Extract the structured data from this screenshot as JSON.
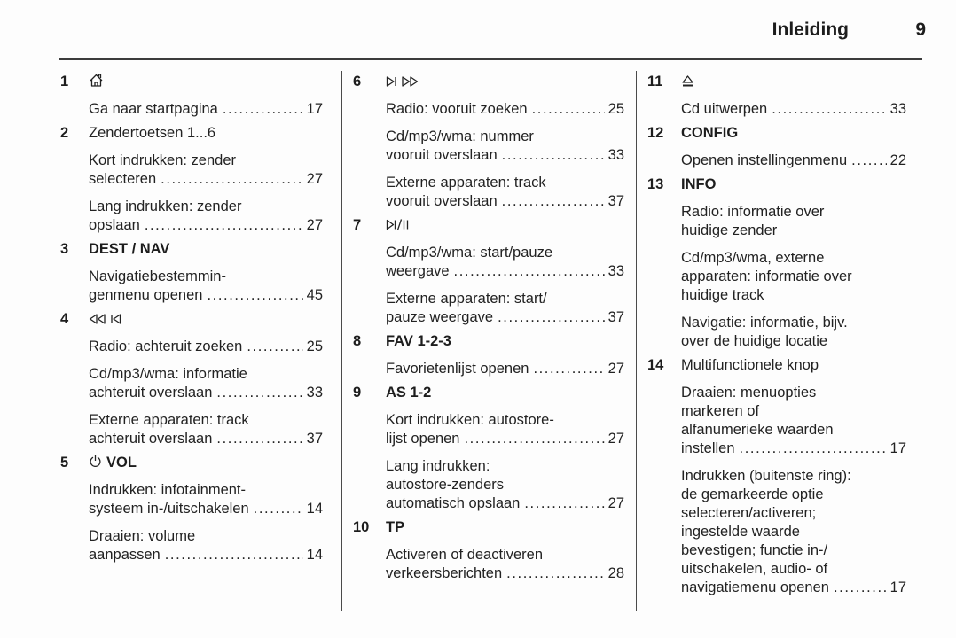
{
  "header": {
    "title": "Inleiding",
    "page_number": "9"
  },
  "colors": {
    "text": "#222222",
    "rule": "#3c3c3c",
    "background": "#fdfdfd"
  },
  "columns": [
    {
      "items": [
        {
          "number": "1",
          "label": {
            "icons": [
              "home-icon"
            ],
            "text": "",
            "bold": false
          },
          "entries": [
            {
              "lines": [
                "Ga naar startpagina"
              ],
              "page": "17"
            }
          ]
        },
        {
          "number": "2",
          "label": {
            "icons": [],
            "text": "Zendertoetsen 1...6",
            "bold": false
          },
          "entries": [
            {
              "lines": [
                "Kort indrukken: zender",
                "selecteren"
              ],
              "page": "27"
            },
            {
              "lines": [
                "Lang indrukken: zender",
                "opslaan"
              ],
              "page": "27"
            }
          ]
        },
        {
          "number": "3",
          "label": {
            "icons": [],
            "text": "DEST / NAV",
            "bold": true
          },
          "entries": [
            {
              "lines": [
                "Navigatiebestemmin-",
                "genmenu openen"
              ],
              "page": "45"
            }
          ]
        },
        {
          "number": "4",
          "label": {
            "icons": [
              "seek-back-icon",
              "skip-back-icon"
            ],
            "text": "",
            "bold": false
          },
          "entries": [
            {
              "lines": [
                "Radio: achteruit zoeken"
              ],
              "page": "25"
            },
            {
              "lines": [
                "Cd/mp3/wma: informatie",
                "achteruit overslaan"
              ],
              "page": "33"
            },
            {
              "lines": [
                "Externe apparaten: track",
                "achteruit overslaan"
              ],
              "page": "37"
            }
          ]
        },
        {
          "number": "5",
          "label": {
            "icons": [
              "power-icon"
            ],
            "text": "VOL",
            "bold": true
          },
          "entries": [
            {
              "lines": [
                "Indrukken: infotainment-",
                "systeem in-/uitschakelen"
              ],
              "page": "14"
            },
            {
              "lines": [
                "Draaien: volume",
                "aanpassen"
              ],
              "page": "14"
            }
          ]
        }
      ]
    },
    {
      "items": [
        {
          "number": "6",
          "label": {
            "icons": [
              "skip-forward-icon",
              "seek-forward-icon"
            ],
            "text": "",
            "bold": false
          },
          "entries": [
            {
              "lines": [
                "Radio: vooruit zoeken"
              ],
              "page": "25"
            },
            {
              "lines": [
                "Cd/mp3/wma: nummer",
                "vooruit overslaan"
              ],
              "page": "33"
            },
            {
              "lines": [
                "Externe apparaten: track",
                "vooruit overslaan"
              ],
              "page": "37"
            }
          ]
        },
        {
          "number": "7",
          "label": {
            "icons": [
              "play-pause-icon"
            ],
            "text": "",
            "bold": false
          },
          "entries": [
            {
              "lines": [
                "Cd/mp3/wma: start/pauze",
                "weergave"
              ],
              "page": "33"
            },
            {
              "lines": [
                "Externe apparaten: start/",
                "pauze weergave"
              ],
              "page": "37"
            }
          ]
        },
        {
          "number": "8",
          "label": {
            "icons": [],
            "text": "FAV 1-2-3",
            "bold": true
          },
          "entries": [
            {
              "lines": [
                "Favorietenlijst openen"
              ],
              "page": "27"
            }
          ]
        },
        {
          "number": "9",
          "label": {
            "icons": [],
            "text": "AS 1-2",
            "bold": true
          },
          "entries": [
            {
              "lines": [
                "Kort indrukken: autostore-",
                "lijst openen"
              ],
              "page": "27"
            },
            {
              "lines": [
                "Lang indrukken:",
                "autostore-zenders",
                "automatisch opslaan"
              ],
              "page": "27"
            }
          ]
        },
        {
          "number": "10",
          "label": {
            "icons": [],
            "text": "TP",
            "bold": true
          },
          "entries": [
            {
              "lines": [
                "Activeren of deactiveren",
                "verkeersberichten"
              ],
              "page": "28"
            }
          ]
        }
      ]
    },
    {
      "items": [
        {
          "number": "11",
          "label": {
            "icons": [
              "eject-icon"
            ],
            "text": "",
            "bold": false
          },
          "entries": [
            {
              "lines": [
                "Cd uitwerpen"
              ],
              "page": "33"
            }
          ]
        },
        {
          "number": "12",
          "label": {
            "icons": [],
            "text": "CONFIG",
            "bold": true
          },
          "entries": [
            {
              "lines": [
                "Openen instellingenmenu"
              ],
              "page": "22"
            }
          ]
        },
        {
          "number": "13",
          "label": {
            "icons": [],
            "text": "INFO",
            "bold": true
          },
          "entries": [
            {
              "lines": [
                "Radio: informatie over",
                "huidige zender"
              ],
              "page": null
            },
            {
              "lines": [
                "Cd/mp3/wma, externe",
                "apparaten: informatie over",
                "huidige track"
              ],
              "page": null
            },
            {
              "lines": [
                "Navigatie: informatie, bijv.",
                "over de huidige locatie"
              ],
              "page": null
            }
          ]
        },
        {
          "number": "14",
          "label": {
            "icons": [],
            "text": "Multifunctionele knop",
            "bold": false
          },
          "entries": [
            {
              "lines": [
                "Draaien: menuopties",
                "markeren of",
                "alfanumerieke waarden",
                "instellen "
              ],
              "page": "17"
            },
            {
              "lines": [
                "Indrukken (buitenste ring):",
                "de gemarkeerde optie",
                "selecteren/activeren;",
                "ingestelde waarde",
                "bevestigen; functie in-/",
                "uitschakelen, audio- of",
                "navigatiemenu openen"
              ],
              "page": "17"
            }
          ]
        }
      ]
    }
  ]
}
